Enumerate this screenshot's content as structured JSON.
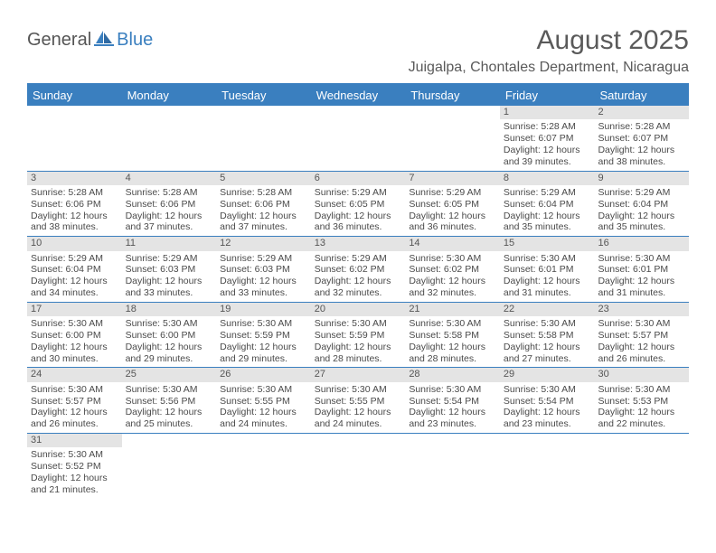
{
  "brand": {
    "part1": "General",
    "part2": "Blue"
  },
  "title": "August 2025",
  "location": "Juigalpa, Chontales Department, Nicaragua",
  "colors": {
    "accent": "#3a7fbf",
    "daynum_bg": "#e4e4e4",
    "text": "#4a4a4a",
    "header_text": "#5a5a5a",
    "bg": "#ffffff"
  },
  "typography": {
    "title_fontsize": 30,
    "location_fontsize": 16,
    "dayhead_fontsize": 13,
    "cell_fontsize": 10.5
  },
  "day_headers": [
    "Sunday",
    "Monday",
    "Tuesday",
    "Wednesday",
    "Thursday",
    "Friday",
    "Saturday"
  ],
  "weeks": [
    [
      null,
      null,
      null,
      null,
      null,
      {
        "n": "1",
        "sunrise": "5:28 AM",
        "sunset": "6:07 PM",
        "dl1": "Daylight: 12 hours",
        "dl2": "and 39 minutes."
      },
      {
        "n": "2",
        "sunrise": "5:28 AM",
        "sunset": "6:07 PM",
        "dl1": "Daylight: 12 hours",
        "dl2": "and 38 minutes."
      }
    ],
    [
      {
        "n": "3",
        "sunrise": "5:28 AM",
        "sunset": "6:06 PM",
        "dl1": "Daylight: 12 hours",
        "dl2": "and 38 minutes."
      },
      {
        "n": "4",
        "sunrise": "5:28 AM",
        "sunset": "6:06 PM",
        "dl1": "Daylight: 12 hours",
        "dl2": "and 37 minutes."
      },
      {
        "n": "5",
        "sunrise": "5:28 AM",
        "sunset": "6:06 PM",
        "dl1": "Daylight: 12 hours",
        "dl2": "and 37 minutes."
      },
      {
        "n": "6",
        "sunrise": "5:29 AM",
        "sunset": "6:05 PM",
        "dl1": "Daylight: 12 hours",
        "dl2": "and 36 minutes."
      },
      {
        "n": "7",
        "sunrise": "5:29 AM",
        "sunset": "6:05 PM",
        "dl1": "Daylight: 12 hours",
        "dl2": "and 36 minutes."
      },
      {
        "n": "8",
        "sunrise": "5:29 AM",
        "sunset": "6:04 PM",
        "dl1": "Daylight: 12 hours",
        "dl2": "and 35 minutes."
      },
      {
        "n": "9",
        "sunrise": "5:29 AM",
        "sunset": "6:04 PM",
        "dl1": "Daylight: 12 hours",
        "dl2": "and 35 minutes."
      }
    ],
    [
      {
        "n": "10",
        "sunrise": "5:29 AM",
        "sunset": "6:04 PM",
        "dl1": "Daylight: 12 hours",
        "dl2": "and 34 minutes."
      },
      {
        "n": "11",
        "sunrise": "5:29 AM",
        "sunset": "6:03 PM",
        "dl1": "Daylight: 12 hours",
        "dl2": "and 33 minutes."
      },
      {
        "n": "12",
        "sunrise": "5:29 AM",
        "sunset": "6:03 PM",
        "dl1": "Daylight: 12 hours",
        "dl2": "and 33 minutes."
      },
      {
        "n": "13",
        "sunrise": "5:29 AM",
        "sunset": "6:02 PM",
        "dl1": "Daylight: 12 hours",
        "dl2": "and 32 minutes."
      },
      {
        "n": "14",
        "sunrise": "5:30 AM",
        "sunset": "6:02 PM",
        "dl1": "Daylight: 12 hours",
        "dl2": "and 32 minutes."
      },
      {
        "n": "15",
        "sunrise": "5:30 AM",
        "sunset": "6:01 PM",
        "dl1": "Daylight: 12 hours",
        "dl2": "and 31 minutes."
      },
      {
        "n": "16",
        "sunrise": "5:30 AM",
        "sunset": "6:01 PM",
        "dl1": "Daylight: 12 hours",
        "dl2": "and 31 minutes."
      }
    ],
    [
      {
        "n": "17",
        "sunrise": "5:30 AM",
        "sunset": "6:00 PM",
        "dl1": "Daylight: 12 hours",
        "dl2": "and 30 minutes."
      },
      {
        "n": "18",
        "sunrise": "5:30 AM",
        "sunset": "6:00 PM",
        "dl1": "Daylight: 12 hours",
        "dl2": "and 29 minutes."
      },
      {
        "n": "19",
        "sunrise": "5:30 AM",
        "sunset": "5:59 PM",
        "dl1": "Daylight: 12 hours",
        "dl2": "and 29 minutes."
      },
      {
        "n": "20",
        "sunrise": "5:30 AM",
        "sunset": "5:59 PM",
        "dl1": "Daylight: 12 hours",
        "dl2": "and 28 minutes."
      },
      {
        "n": "21",
        "sunrise": "5:30 AM",
        "sunset": "5:58 PM",
        "dl1": "Daylight: 12 hours",
        "dl2": "and 28 minutes."
      },
      {
        "n": "22",
        "sunrise": "5:30 AM",
        "sunset": "5:58 PM",
        "dl1": "Daylight: 12 hours",
        "dl2": "and 27 minutes."
      },
      {
        "n": "23",
        "sunrise": "5:30 AM",
        "sunset": "5:57 PM",
        "dl1": "Daylight: 12 hours",
        "dl2": "and 26 minutes."
      }
    ],
    [
      {
        "n": "24",
        "sunrise": "5:30 AM",
        "sunset": "5:57 PM",
        "dl1": "Daylight: 12 hours",
        "dl2": "and 26 minutes."
      },
      {
        "n": "25",
        "sunrise": "5:30 AM",
        "sunset": "5:56 PM",
        "dl1": "Daylight: 12 hours",
        "dl2": "and 25 minutes."
      },
      {
        "n": "26",
        "sunrise": "5:30 AM",
        "sunset": "5:55 PM",
        "dl1": "Daylight: 12 hours",
        "dl2": "and 24 minutes."
      },
      {
        "n": "27",
        "sunrise": "5:30 AM",
        "sunset": "5:55 PM",
        "dl1": "Daylight: 12 hours",
        "dl2": "and 24 minutes."
      },
      {
        "n": "28",
        "sunrise": "5:30 AM",
        "sunset": "5:54 PM",
        "dl1": "Daylight: 12 hours",
        "dl2": "and 23 minutes."
      },
      {
        "n": "29",
        "sunrise": "5:30 AM",
        "sunset": "5:54 PM",
        "dl1": "Daylight: 12 hours",
        "dl2": "and 23 minutes."
      },
      {
        "n": "30",
        "sunrise": "5:30 AM",
        "sunset": "5:53 PM",
        "dl1": "Daylight: 12 hours",
        "dl2": "and 22 minutes."
      }
    ],
    [
      {
        "n": "31",
        "sunrise": "5:30 AM",
        "sunset": "5:52 PM",
        "dl1": "Daylight: 12 hours",
        "dl2": "and 21 minutes."
      },
      null,
      null,
      null,
      null,
      null,
      null
    ]
  ],
  "labels": {
    "sunrise_prefix": "Sunrise: ",
    "sunset_prefix": "Sunset: "
  }
}
